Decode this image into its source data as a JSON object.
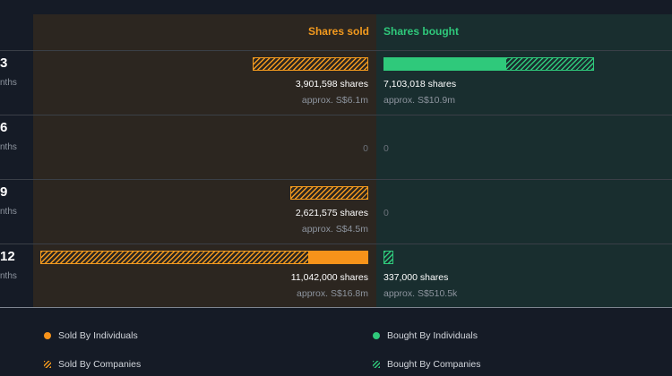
{
  "chart_data": {
    "type": "bar",
    "header": {
      "sold": "Shares sold",
      "bought": "Shares bought"
    },
    "rows": [
      {
        "period_num": "3",
        "period_sub": "nths",
        "sold": {
          "individuals": 0,
          "companies": 3901598,
          "shares_label": "3,901,598 shares",
          "approx_label": "approx. S$6.1m",
          "zero_label": ""
        },
        "bought": {
          "individuals": 4100000,
          "companies": 3003018,
          "shares_label": "7,103,018 shares",
          "approx_label": "approx. S$10.9m",
          "zero_label": ""
        }
      },
      {
        "period_num": "6",
        "period_sub": "nths",
        "sold": {
          "individuals": 0,
          "companies": 0,
          "shares_label": "",
          "approx_label": "",
          "zero_label": "0"
        },
        "bought": {
          "individuals": 0,
          "companies": 0,
          "shares_label": "",
          "approx_label": "",
          "zero_label": "0"
        }
      },
      {
        "period_num": "9",
        "period_sub": "nths",
        "sold": {
          "individuals": 0,
          "companies": 2621575,
          "shares_label": "2,621,575 shares",
          "approx_label": "approx. S$4.5m",
          "zero_label": ""
        },
        "bought": {
          "individuals": 0,
          "companies": 0,
          "shares_label": "",
          "approx_label": "",
          "zero_label": "0"
        }
      },
      {
        "period_num": "12",
        "period_sub": "nths",
        "sold": {
          "individuals": 2000000,
          "companies": 9042000,
          "shares_label": "11,042,000 shares",
          "approx_label": "approx. S$16.8m",
          "zero_label": ""
        },
        "bought": {
          "individuals": 0,
          "companies": 337000,
          "shares_label": "337,000 shares",
          "approx_label": "approx. S$510.5k",
          "zero_label": ""
        }
      }
    ],
    "legend": {
      "sold_individuals": "Sold By Individuals",
      "sold_companies": "Sold By Companies",
      "bought_individuals": "Bought By Individuals",
      "bought_companies": "Bought By Companies"
    },
    "colors": {
      "sold": "#f7931a",
      "bought": "#2fc97b",
      "sold_panel": "#2c2620",
      "bought_panel": "#192e2f",
      "background": "#151b26"
    }
  }
}
